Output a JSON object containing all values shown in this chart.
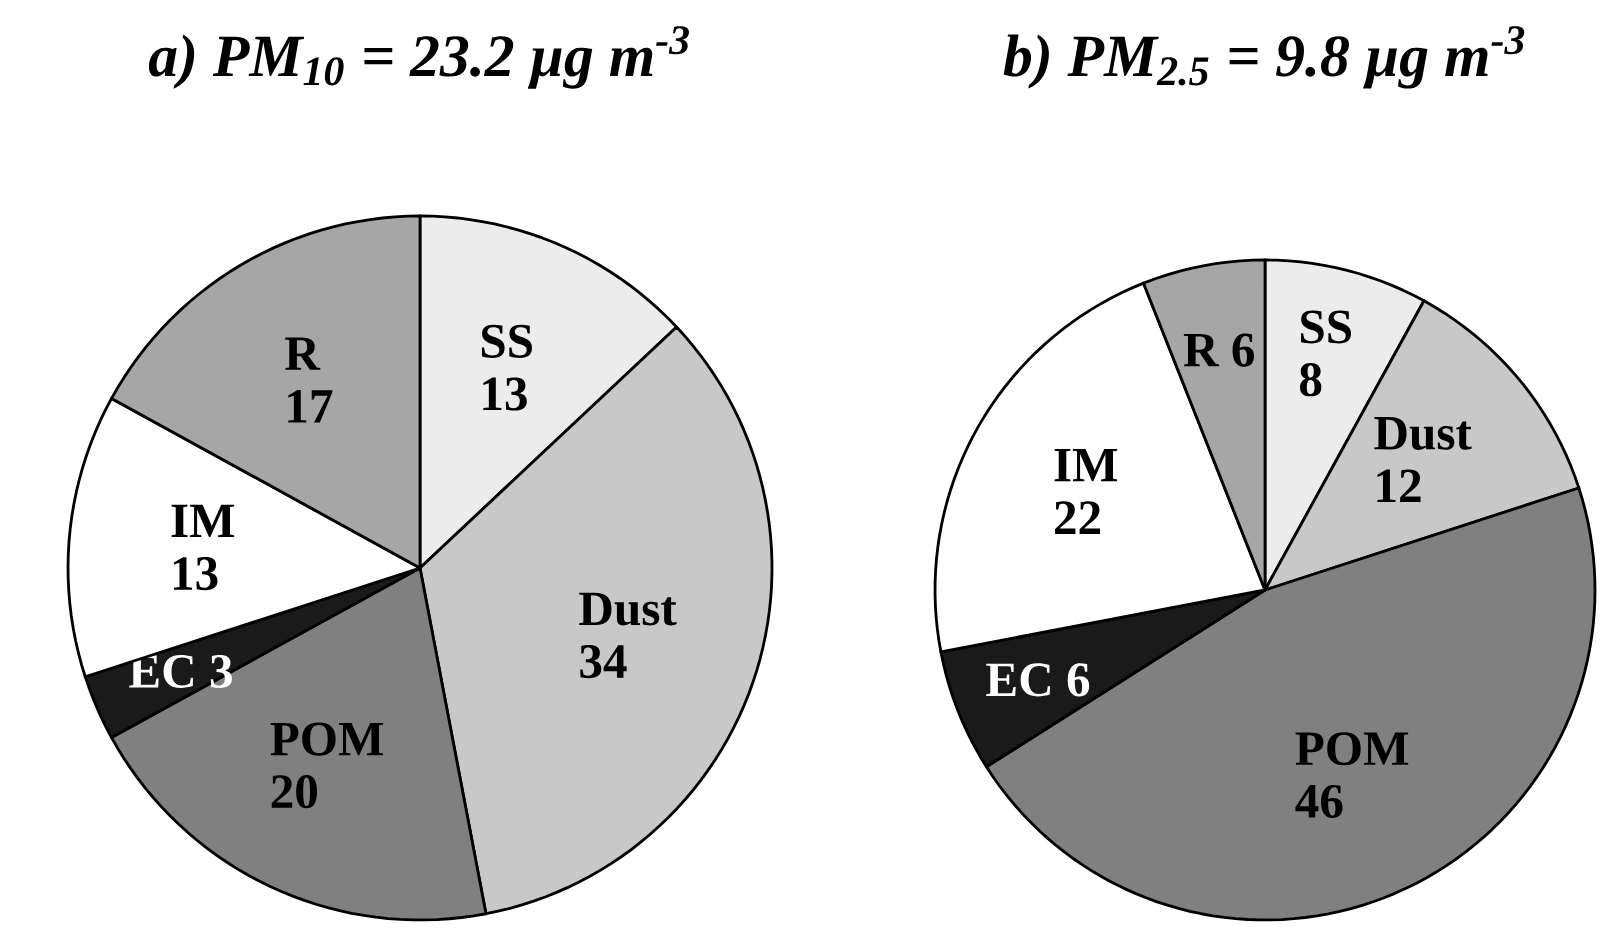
{
  "chart_data": [
    {
      "type": "pie",
      "title": "a) PM$_{10}$ = 23.2 µg m$^{-3}$",
      "categories": [
        "SS",
        "Dust",
        "POM",
        "EC",
        "IM",
        "R"
      ],
      "values": [
        13,
        34,
        20,
        3,
        13,
        17
      ],
      "colors": [
        "#ececec",
        "#c8c8c8",
        "#808080",
        "#1a1a1a",
        "#ffffff",
        "#a6a6a6"
      ],
      "data_labels": true
    },
    {
      "type": "pie",
      "title": "b) PM$_{2.5}$ = 9.8 µg m$^{-3}$",
      "categories": [
        "SS",
        "Dust",
        "POM",
        "EC",
        "IM",
        "R"
      ],
      "values": [
        8,
        12,
        46,
        6,
        22,
        6
      ],
      "colors": [
        "#ececec",
        "#c8c8c8",
        "#808080",
        "#1a1a1a",
        "#ffffff",
        "#a6a6a6"
      ],
      "data_labels": true
    }
  ]
}
